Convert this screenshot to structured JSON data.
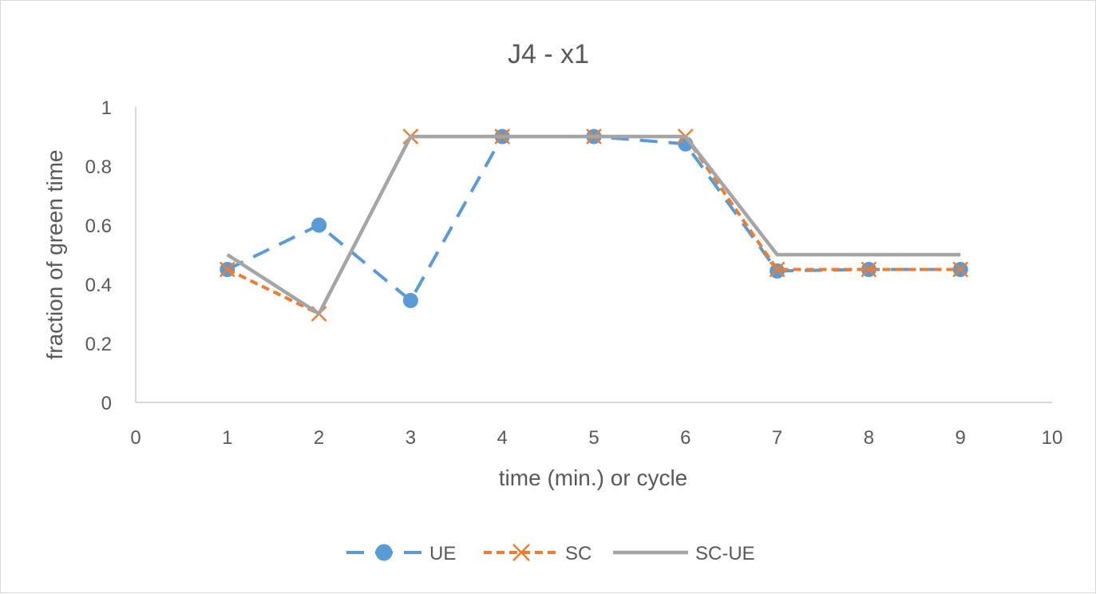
{
  "chart_data": {
    "type": "line",
    "title": "J4 - x1",
    "xlabel": "time (min.) or cycle",
    "ylabel": "fraction of green time",
    "xlim": [
      0,
      10
    ],
    "ylim": [
      0,
      1
    ],
    "xticks": [
      "0",
      "1",
      "2",
      "3",
      "4",
      "5",
      "6",
      "7",
      "8",
      "9",
      "10"
    ],
    "yticks": [
      "0",
      "0.2",
      "0.4",
      "0.6",
      "0.8",
      "1"
    ],
    "grid": false,
    "legend_position": "bottom",
    "x": [
      1,
      2,
      3,
      4,
      5,
      6,
      7,
      8,
      9
    ],
    "series": [
      {
        "name": "UE",
        "values": [
          0.45,
          0.6,
          0.345,
          0.9,
          0.9,
          0.875,
          0.445,
          0.45,
          0.45
        ],
        "color": "#5b9bd5",
        "line_style": "dashed",
        "marker": "circle"
      },
      {
        "name": "SC",
        "values": [
          0.45,
          0.3,
          0.9,
          0.9,
          0.9,
          0.9,
          0.45,
          0.45,
          0.45
        ],
        "color": "#ed7d31",
        "line_style": "dashed",
        "marker": "x"
      },
      {
        "name": "SC-UE",
        "values": [
          0.5,
          0.3,
          0.9,
          0.9,
          0.9,
          0.9,
          0.5,
          0.5,
          0.5
        ],
        "color": "#a5a5a5",
        "line_style": "solid",
        "marker": "none"
      }
    ]
  }
}
